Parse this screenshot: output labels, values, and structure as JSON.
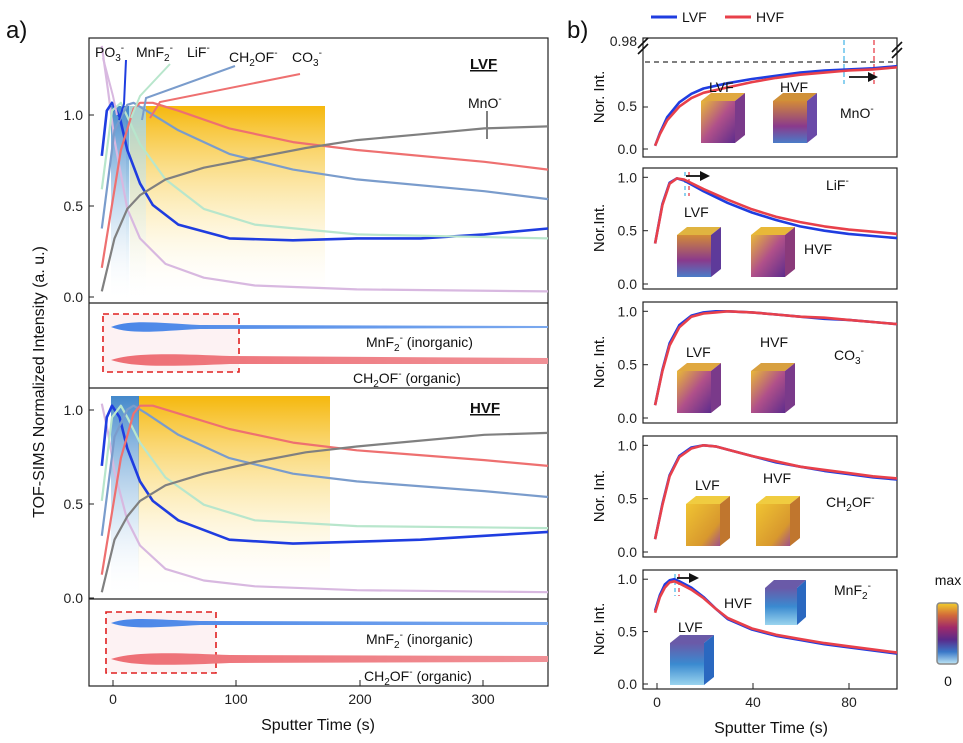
{
  "panel_a": {
    "letter": "a)",
    "ylabel": "TOF-SIMS Normalized Intensity (a. u.)",
    "xlabel": "Sputter Time (s)",
    "x_ticks": [
      "0",
      "100",
      "200",
      "300"
    ],
    "y_ticks": [
      "0.0",
      "0.5",
      "1.0"
    ],
    "species_labels": {
      "po3_main": "PO",
      "po3_sub": "3",
      "po3_sup": "-",
      "mnf2_main": "MnF",
      "mnf2_sub": "2",
      "mnf2_sup": "-",
      "lif_main": "LiF",
      "lif_sup": "-",
      "ch2of_a": "CH",
      "ch2of_sub": "2",
      "ch2of_b": "OF",
      "ch2of_sup": "-",
      "co3_main": "CO",
      "co3_sub": "3",
      "co3_sup": "-",
      "mno_main": "MnO",
      "mno_sup": "-"
    },
    "lvf_tag": "LVF",
    "hvf_tag": "HVF",
    "ribbon_mnf2": {
      "a": "MnF",
      "sub": "2",
      "sup": "-",
      "b": " (inorganic)"
    },
    "ribbon_ch2of": {
      "a": "CH",
      "sub": "2",
      "b": "OF",
      "sup": "-",
      "c": " (organic)"
    }
  },
  "panel_b": {
    "letter": "b)",
    "legend": [
      "LVF",
      "HVF"
    ],
    "xlabel": "Sputter Time (s)",
    "x_ticks": [
      "0",
      "40",
      "80"
    ],
    "y_ticks": [
      "0.0",
      "0.5",
      "1.0"
    ],
    "top_break_tick": "0.98",
    "top_y_ticks": [
      "0.0",
      "0.5"
    ],
    "ylabels": [
      "Nor. Int.",
      "Nor.Int.",
      "Nor. Int.",
      "Nor. Int.",
      "Nor. Int."
    ],
    "species": [
      {
        "main": "MnO",
        "sub": "",
        "sup": "-"
      },
      {
        "main": "LiF",
        "sub": "",
        "sup": "-"
      },
      {
        "main": "CO",
        "sub": "3",
        "sup": "-"
      },
      {
        "main": "CH",
        "sub": "2",
        "post": "OF",
        "sup": "-"
      },
      {
        "main": "MnF",
        "sub": "2",
        "sup": "-"
      }
    ],
    "inset_lvf": "LVF",
    "inset_hvf": "HVF"
  },
  "colorbar": {
    "max_label": "max",
    "min_label": "0"
  },
  "colors": {
    "PO3": "#d8b8e0",
    "MnF2": "#1f3de0",
    "LiF": "#b8e6cc",
    "CH2OF": "#7a9ccc",
    "CO3": "#ee7070",
    "MnO": "#808080",
    "LVF": "#1f3de0",
    "HVF": "#e8404a"
  },
  "chart_data": [
    {
      "type": "line",
      "title": "LVF",
      "xlabel": "Sputter Time (s)",
      "ylabel": "TOF-SIMS Normalized Intensity (a. u.)",
      "xlim": [
        -10,
        350
      ],
      "ylim": [
        0,
        1.32
      ],
      "series": [
        {
          "name": "PO3-",
          "x": [
            0,
            5,
            10,
            20,
            30,
            50,
            80,
            120,
            200,
            350
          ],
          "y": [
            1.28,
            1.05,
            0.8,
            0.45,
            0.3,
            0.17,
            0.1,
            0.06,
            0.04,
            0.03
          ]
        },
        {
          "name": "MnF2-",
          "x": [
            0,
            4,
            8,
            14,
            20,
            30,
            40,
            60,
            100,
            150,
            200,
            250,
            300,
            350
          ],
          "y": [
            0.72,
            0.95,
            0.99,
            0.92,
            0.75,
            0.58,
            0.47,
            0.37,
            0.3,
            0.29,
            0.3,
            0.3,
            0.32,
            0.35
          ]
        },
        {
          "name": "LiF-",
          "x": [
            0,
            8,
            15,
            20,
            30,
            50,
            80,
            120,
            200,
            350
          ],
          "y": [
            0.55,
            0.95,
            0.99,
            0.92,
            0.78,
            0.6,
            0.45,
            0.37,
            0.32,
            0.3
          ]
        },
        {
          "name": "CH2OF-",
          "x": [
            0,
            10,
            20,
            25,
            35,
            60,
            100,
            150,
            200,
            300,
            350
          ],
          "y": [
            0.35,
            0.85,
            0.98,
            0.99,
            0.95,
            0.85,
            0.73,
            0.65,
            0.6,
            0.54,
            0.5
          ]
        },
        {
          "name": "CO3-",
          "x": [
            0,
            15,
            25,
            30,
            40,
            60,
            100,
            150,
            200,
            300,
            350
          ],
          "y": [
            0.15,
            0.75,
            0.96,
            0.99,
            0.99,
            0.95,
            0.86,
            0.79,
            0.75,
            0.69,
            0.65
          ]
        },
        {
          "name": "MnO-",
          "x": [
            0,
            10,
            20,
            30,
            50,
            80,
            120,
            160,
            200,
            250,
            300,
            350
          ],
          "y": [
            0.03,
            0.3,
            0.45,
            0.52,
            0.6,
            0.66,
            0.71,
            0.76,
            0.8,
            0.83,
            0.86,
            0.87
          ]
        }
      ]
    },
    {
      "type": "line",
      "title": "HVF",
      "xlabel": "Sputter Time (s)",
      "ylabel": "TOF-SIMS Normalized Intensity (a. u.)",
      "xlim": [
        -10,
        350
      ],
      "ylim": [
        0,
        1.05
      ],
      "series": [
        {
          "name": "PO3-",
          "x": [
            0,
            5,
            10,
            20,
            30,
            50,
            80,
            120,
            200,
            350
          ],
          "y": [
            1.0,
            0.85,
            0.65,
            0.4,
            0.27,
            0.15,
            0.09,
            0.06,
            0.04,
            0.03
          ]
        },
        {
          "name": "MnF2-",
          "x": [
            0,
            4,
            8,
            14,
            20,
            30,
            40,
            60,
            100,
            150,
            200,
            250,
            300,
            350
          ],
          "y": [
            0.68,
            0.93,
            0.99,
            0.93,
            0.77,
            0.6,
            0.5,
            0.4,
            0.3,
            0.28,
            0.29,
            0.3,
            0.32,
            0.34
          ]
        },
        {
          "name": "LiF-",
          "x": [
            0,
            8,
            15,
            20,
            30,
            50,
            80,
            120,
            200,
            350
          ],
          "y": [
            0.5,
            0.93,
            0.99,
            0.93,
            0.8,
            0.62,
            0.48,
            0.4,
            0.37,
            0.36
          ]
        },
        {
          "name": "CH2OF-",
          "x": [
            0,
            10,
            20,
            25,
            35,
            60,
            100,
            150,
            200,
            300,
            350
          ],
          "y": [
            0.32,
            0.83,
            0.97,
            0.99,
            0.95,
            0.84,
            0.72,
            0.64,
            0.6,
            0.55,
            0.52
          ]
        },
        {
          "name": "CO3-",
          "x": [
            0,
            15,
            25,
            30,
            40,
            60,
            100,
            150,
            200,
            300,
            350
          ],
          "y": [
            0.12,
            0.72,
            0.95,
            0.99,
            0.99,
            0.95,
            0.87,
            0.8,
            0.76,
            0.71,
            0.68
          ]
        },
        {
          "name": "MnO-",
          "x": [
            0,
            10,
            20,
            30,
            50,
            80,
            120,
            160,
            200,
            250,
            300,
            350
          ],
          "y": [
            0.03,
            0.3,
            0.42,
            0.5,
            0.58,
            0.64,
            0.7,
            0.75,
            0.78,
            0.81,
            0.84,
            0.85
          ]
        }
      ]
    },
    {
      "type": "line",
      "title": "MnO-",
      "xlabel": "Sputter Time (s)",
      "ylabel": "Nor. Int.",
      "xlim": [
        -5,
        100
      ],
      "ylim": [
        0,
        0.98
      ],
      "series": [
        {
          "name": "LVF",
          "x": [
            0,
            2,
            5,
            10,
            15,
            20,
            30,
            40,
            50,
            60,
            70,
            80,
            90,
            100
          ],
          "y": [
            0.03,
            0.15,
            0.3,
            0.44,
            0.52,
            0.57,
            0.62,
            0.66,
            0.69,
            0.72,
            0.74,
            0.75,
            0.76,
            0.78
          ]
        },
        {
          "name": "HVF",
          "x": [
            0,
            2,
            5,
            10,
            15,
            20,
            30,
            40,
            50,
            60,
            70,
            80,
            90,
            100
          ],
          "y": [
            0.03,
            0.14,
            0.27,
            0.4,
            0.48,
            0.53,
            0.58,
            0.63,
            0.67,
            0.7,
            0.72,
            0.74,
            0.75,
            0.77
          ]
        }
      ]
    },
    {
      "type": "line",
      "title": "LiF-",
      "xlabel": "Sputter Time (s)",
      "ylabel": "Nor.Int.",
      "xlim": [
        -5,
        100
      ],
      "ylim": [
        0,
        1.05
      ],
      "series": [
        {
          "name": "LVF",
          "x": [
            0,
            3,
            6,
            9,
            12,
            20,
            30,
            40,
            50,
            60,
            70,
            80,
            90,
            100
          ],
          "y": [
            0.38,
            0.75,
            0.95,
            0.99,
            0.97,
            0.87,
            0.76,
            0.67,
            0.6,
            0.54,
            0.5,
            0.47,
            0.45,
            0.43
          ]
        },
        {
          "name": "HVF",
          "x": [
            0,
            3,
            6,
            9,
            12,
            20,
            30,
            40,
            50,
            60,
            70,
            80,
            90,
            100
          ],
          "y": [
            0.38,
            0.74,
            0.94,
            0.99,
            0.98,
            0.89,
            0.79,
            0.7,
            0.63,
            0.58,
            0.54,
            0.51,
            0.49,
            0.47
          ]
        }
      ]
    },
    {
      "type": "line",
      "title": "CO3-",
      "xlabel": "Sputter Time (s)",
      "ylabel": "Nor. Int.",
      "xlim": [
        -5,
        100
      ],
      "ylim": [
        0,
        1.05
      ],
      "series": [
        {
          "name": "LVF",
          "x": [
            0,
            3,
            6,
            10,
            15,
            20,
            25,
            30,
            40,
            50,
            60,
            70,
            80,
            90,
            100
          ],
          "y": [
            0.12,
            0.45,
            0.7,
            0.87,
            0.96,
            0.99,
            1.0,
            1.0,
            0.99,
            0.97,
            0.95,
            0.93,
            0.92,
            0.9,
            0.88
          ]
        },
        {
          "name": "HVF",
          "x": [
            0,
            3,
            6,
            10,
            15,
            20,
            25,
            30,
            40,
            50,
            60,
            70,
            80,
            90,
            100
          ],
          "y": [
            0.12,
            0.44,
            0.68,
            0.85,
            0.95,
            0.98,
            0.99,
            1.0,
            0.99,
            0.97,
            0.95,
            0.94,
            0.92,
            0.9,
            0.88
          ]
        }
      ]
    },
    {
      "type": "line",
      "title": "CH2OF-",
      "xlabel": "Sputter Time (s)",
      "ylabel": "Nor. Int.",
      "xlim": [
        -5,
        100
      ],
      "ylim": [
        0,
        1.05
      ],
      "series": [
        {
          "name": "LVF",
          "x": [
            0,
            3,
            6,
            10,
            15,
            20,
            25,
            30,
            40,
            50,
            60,
            70,
            80,
            90,
            100
          ],
          "y": [
            0.12,
            0.45,
            0.72,
            0.9,
            0.98,
            1.0,
            0.99,
            0.96,
            0.9,
            0.84,
            0.8,
            0.76,
            0.73,
            0.7,
            0.68
          ]
        },
        {
          "name": "HVF",
          "x": [
            0,
            3,
            6,
            10,
            15,
            20,
            25,
            30,
            40,
            50,
            60,
            70,
            80,
            90,
            100
          ],
          "y": [
            0.12,
            0.44,
            0.71,
            0.89,
            0.97,
            1.0,
            0.99,
            0.96,
            0.9,
            0.85,
            0.8,
            0.77,
            0.74,
            0.71,
            0.69
          ]
        }
      ]
    },
    {
      "type": "line",
      "title": "MnF2-",
      "xlabel": "Sputter Time (s)",
      "ylabel": "Nor. Int.",
      "xlim": [
        -5,
        100
      ],
      "ylim": [
        0,
        1.05
      ],
      "series": [
        {
          "name": "LVF",
          "x": [
            0,
            2,
            4,
            6,
            8,
            10,
            15,
            20,
            25,
            30,
            40,
            50,
            60,
            70,
            80,
            90,
            100
          ],
          "y": [
            0.7,
            0.85,
            0.95,
            0.99,
            1.0,
            0.98,
            0.92,
            0.83,
            0.72,
            0.62,
            0.52,
            0.46,
            0.42,
            0.38,
            0.35,
            0.32,
            0.29
          ]
        },
        {
          "name": "HVF",
          "x": [
            0,
            2,
            4,
            6,
            8,
            10,
            15,
            20,
            25,
            30,
            40,
            50,
            60,
            70,
            80,
            90,
            100
          ],
          "y": [
            0.68,
            0.83,
            0.92,
            0.97,
            0.98,
            0.96,
            0.9,
            0.82,
            0.72,
            0.63,
            0.53,
            0.47,
            0.43,
            0.39,
            0.36,
            0.33,
            0.3
          ]
        }
      ]
    }
  ]
}
